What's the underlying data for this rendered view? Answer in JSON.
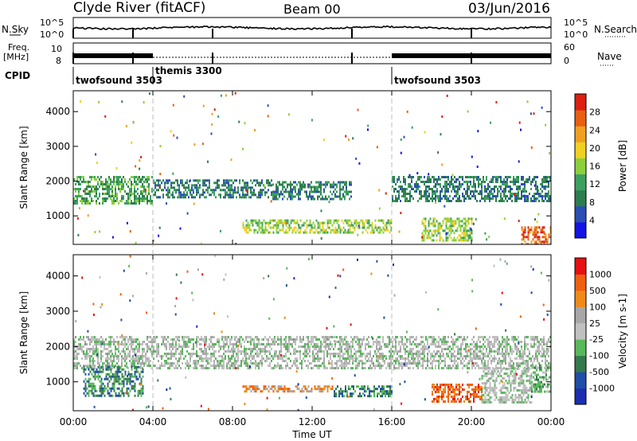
{
  "header": {
    "station": "Clyde River (fitACF)",
    "beam": "Beam 00",
    "date": "03/Jun/2016"
  },
  "panel_labels": {
    "nsky": "N.Sky",
    "nsearch": "N.Search",
    "freq_line1": "Freq.",
    "freq_line2": "[MHz]",
    "nave": "Nave",
    "cpid": "CPID"
  },
  "scales": {
    "noise_ticks": [
      "10^5",
      "10^0"
    ],
    "freq_ticks": [
      "10",
      "8"
    ],
    "nave_ticks": [
      "60",
      "0"
    ]
  },
  "cpid_segments": [
    {
      "label": "twofsound 3503",
      "start_hour": 0.0
    },
    {
      "label": "themis 3300",
      "start_hour": 4.0
    },
    {
      "label": "twofsound 3503",
      "start_hour": 16.0
    }
  ],
  "colors": {
    "power": [
      "#1414e6",
      "#2a4fb4",
      "#2e7d4f",
      "#3da060",
      "#8ccf3c",
      "#f0d020",
      "#f0a020",
      "#e86010",
      "#dc2010"
    ],
    "velocity": [
      "#1c2fb0",
      "#1f4fa8",
      "#357a4c",
      "#58b85a",
      "#c0c0c0",
      "#a8a8a8",
      "#f08a18",
      "#f06010",
      "#e81010"
    ]
  },
  "chart_data": [
    {
      "type": "heatmap",
      "title": "Power",
      "xlabel": "",
      "ylabel": "Slant Range [km]",
      "colorbar_label": "Power [dB]",
      "colorbar_ticks": [
        "28",
        "24",
        "20",
        "16",
        "12",
        "8",
        "4"
      ],
      "xlim": [
        0,
        24
      ],
      "ylim": [
        180,
        4600
      ],
      "x_tick_labels": [
        "00:00",
        "04:00",
        "08:00",
        "12:00",
        "16:00",
        "20:00",
        "00:00"
      ],
      "y_tick_labels": [
        "1000",
        "2000",
        "3000",
        "4000"
      ],
      "bands": [
        {
          "x": [
            0,
            4
          ],
          "y": [
            1350,
            2150
          ],
          "level": 3
        },
        {
          "x": [
            4,
            10
          ],
          "y": [
            1550,
            2050
          ],
          "level": 2
        },
        {
          "x": [
            10,
            14
          ],
          "y": [
            1500,
            2000
          ],
          "level": 2
        },
        {
          "x": [
            16,
            24
          ],
          "y": [
            1450,
            2150
          ],
          "level": 2
        },
        {
          "x": [
            8.5,
            16
          ],
          "y": [
            550,
            900
          ],
          "level": 4
        },
        {
          "x": [
            17.5,
            20
          ],
          "y": [
            300,
            950
          ],
          "level": 4
        },
        {
          "x": [
            22.5,
            24
          ],
          "y": [
            200,
            700
          ],
          "level": 7
        }
      ]
    },
    {
      "type": "heatmap",
      "title": "Velocity",
      "xlabel": "Time UT",
      "ylabel": "Slant Range [km]",
      "colorbar_label": "Velocity [m s-1]",
      "colorbar_ticks": [
        "1000",
        "500",
        "100",
        "25",
        "-25",
        "-100",
        "-500",
        "-1000"
      ],
      "xlim": [
        0,
        24
      ],
      "ylim": [
        180,
        4600
      ],
      "x_tick_labels": [
        "00:00",
        "04:00",
        "08:00",
        "12:00",
        "16:00",
        "20:00",
        "00:00"
      ],
      "y_tick_labels": [
        "1000",
        "2000",
        "3000",
        "4000"
      ],
      "bands": [
        {
          "x": [
            0,
            24
          ],
          "y": [
            1400,
            2300
          ],
          "level": 4
        },
        {
          "x": [
            0.5,
            3.5
          ],
          "y": [
            600,
            1450
          ],
          "level": 2
        },
        {
          "x": [
            8.5,
            13
          ],
          "y": [
            700,
            900
          ],
          "level": 6
        },
        {
          "x": [
            13,
            16
          ],
          "y": [
            600,
            900
          ],
          "level": 2
        },
        {
          "x": [
            18,
            20.5
          ],
          "y": [
            450,
            950
          ],
          "level": 7
        },
        {
          "x": [
            20.5,
            23
          ],
          "y": [
            400,
            1400
          ],
          "level": 4
        },
        {
          "x": [
            23,
            24
          ],
          "y": [
            700,
            1500
          ],
          "level": 3
        }
      ]
    }
  ]
}
